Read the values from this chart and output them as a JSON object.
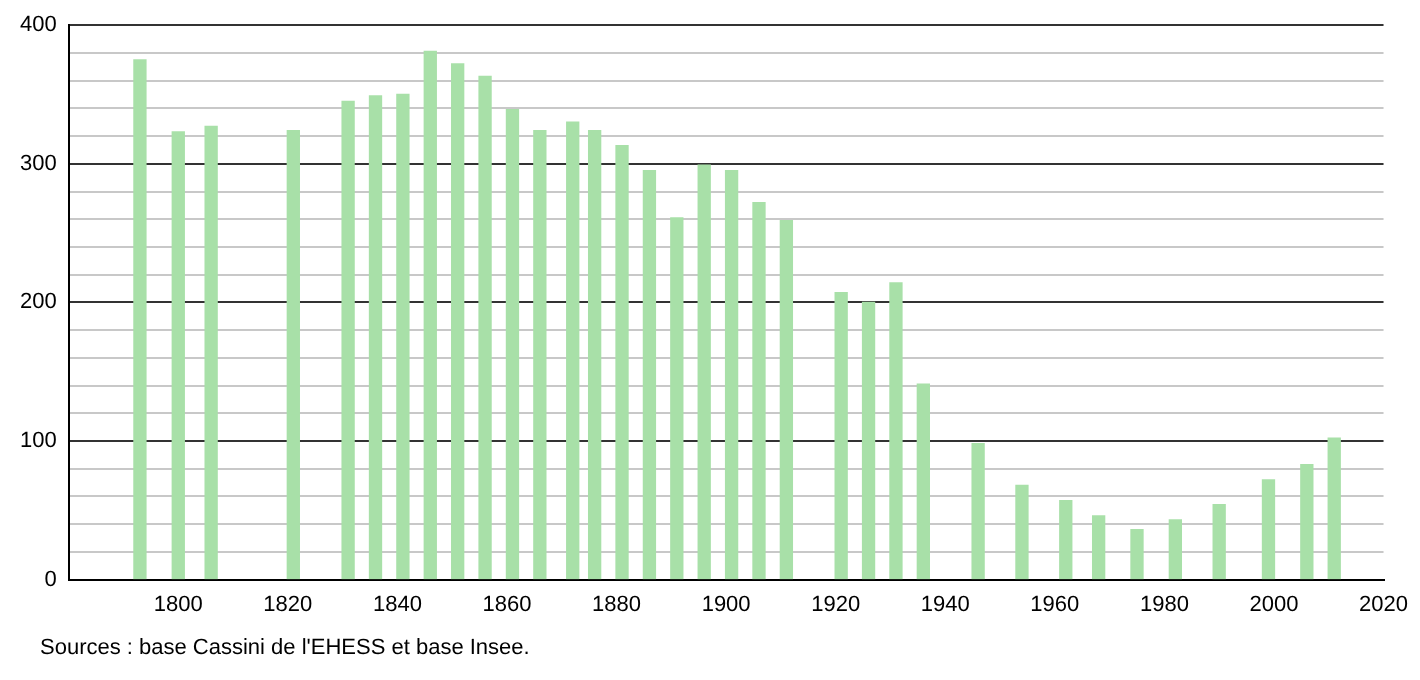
{
  "chart_data": {
    "type": "bar",
    "color": "#a8e0a8",
    "x": [
      1793,
      1800,
      1806,
      1821,
      1831,
      1836,
      1841,
      1846,
      1851,
      1856,
      1861,
      1866,
      1872,
      1876,
      1881,
      1886,
      1891,
      1896,
      1901,
      1906,
      1911,
      1921,
      1926,
      1931,
      1936,
      1946,
      1954,
      1962,
      1968,
      1975,
      1982,
      1990,
      1999,
      2006,
      2011
    ],
    "values": [
      375,
      323,
      327,
      324,
      345,
      349,
      350,
      381,
      372,
      363,
      339,
      324,
      330,
      324,
      313,
      295,
      261,
      299,
      295,
      272,
      259,
      207,
      200,
      214,
      141,
      98,
      68,
      57,
      46,
      36,
      43,
      54,
      72,
      83,
      102
    ],
    "xlim": [
      1780,
      2020
    ],
    "xticks": [
      1800,
      1820,
      1840,
      1860,
      1880,
      1900,
      1920,
      1940,
      1960,
      1980,
      2000,
      2020
    ],
    "ylim": [
      0,
      400
    ],
    "yticks": [
      0,
      {
        "value": 20,
        "label": null
      },
      {
        "value": 40,
        "label": null
      },
      {
        "value": 60,
        "label": null
      },
      {
        "value": 80,
        "label": null
      },
      100,
      {
        "value": 120,
        "label": null
      },
      {
        "value": 140,
        "label": null
      },
      {
        "value": 160,
        "label": null
      },
      {
        "value": 180,
        "label": null
      },
      200,
      {
        "value": 220,
        "label": null
      },
      {
        "value": 240,
        "label": null
      },
      {
        "value": 260,
        "label": null
      },
      {
        "value": 280,
        "label": null
      },
      300,
      {
        "value": 320,
        "label": null
      },
      {
        "value": 340,
        "label": null
      },
      {
        "value": 360,
        "label": null
      },
      {
        "value": 380,
        "label": null
      },
      400
    ],
    "grid": "y",
    "legend": false,
    "annotations": [
      "Sources : base Cassini de l'EHESS et base Insee."
    ]
  }
}
